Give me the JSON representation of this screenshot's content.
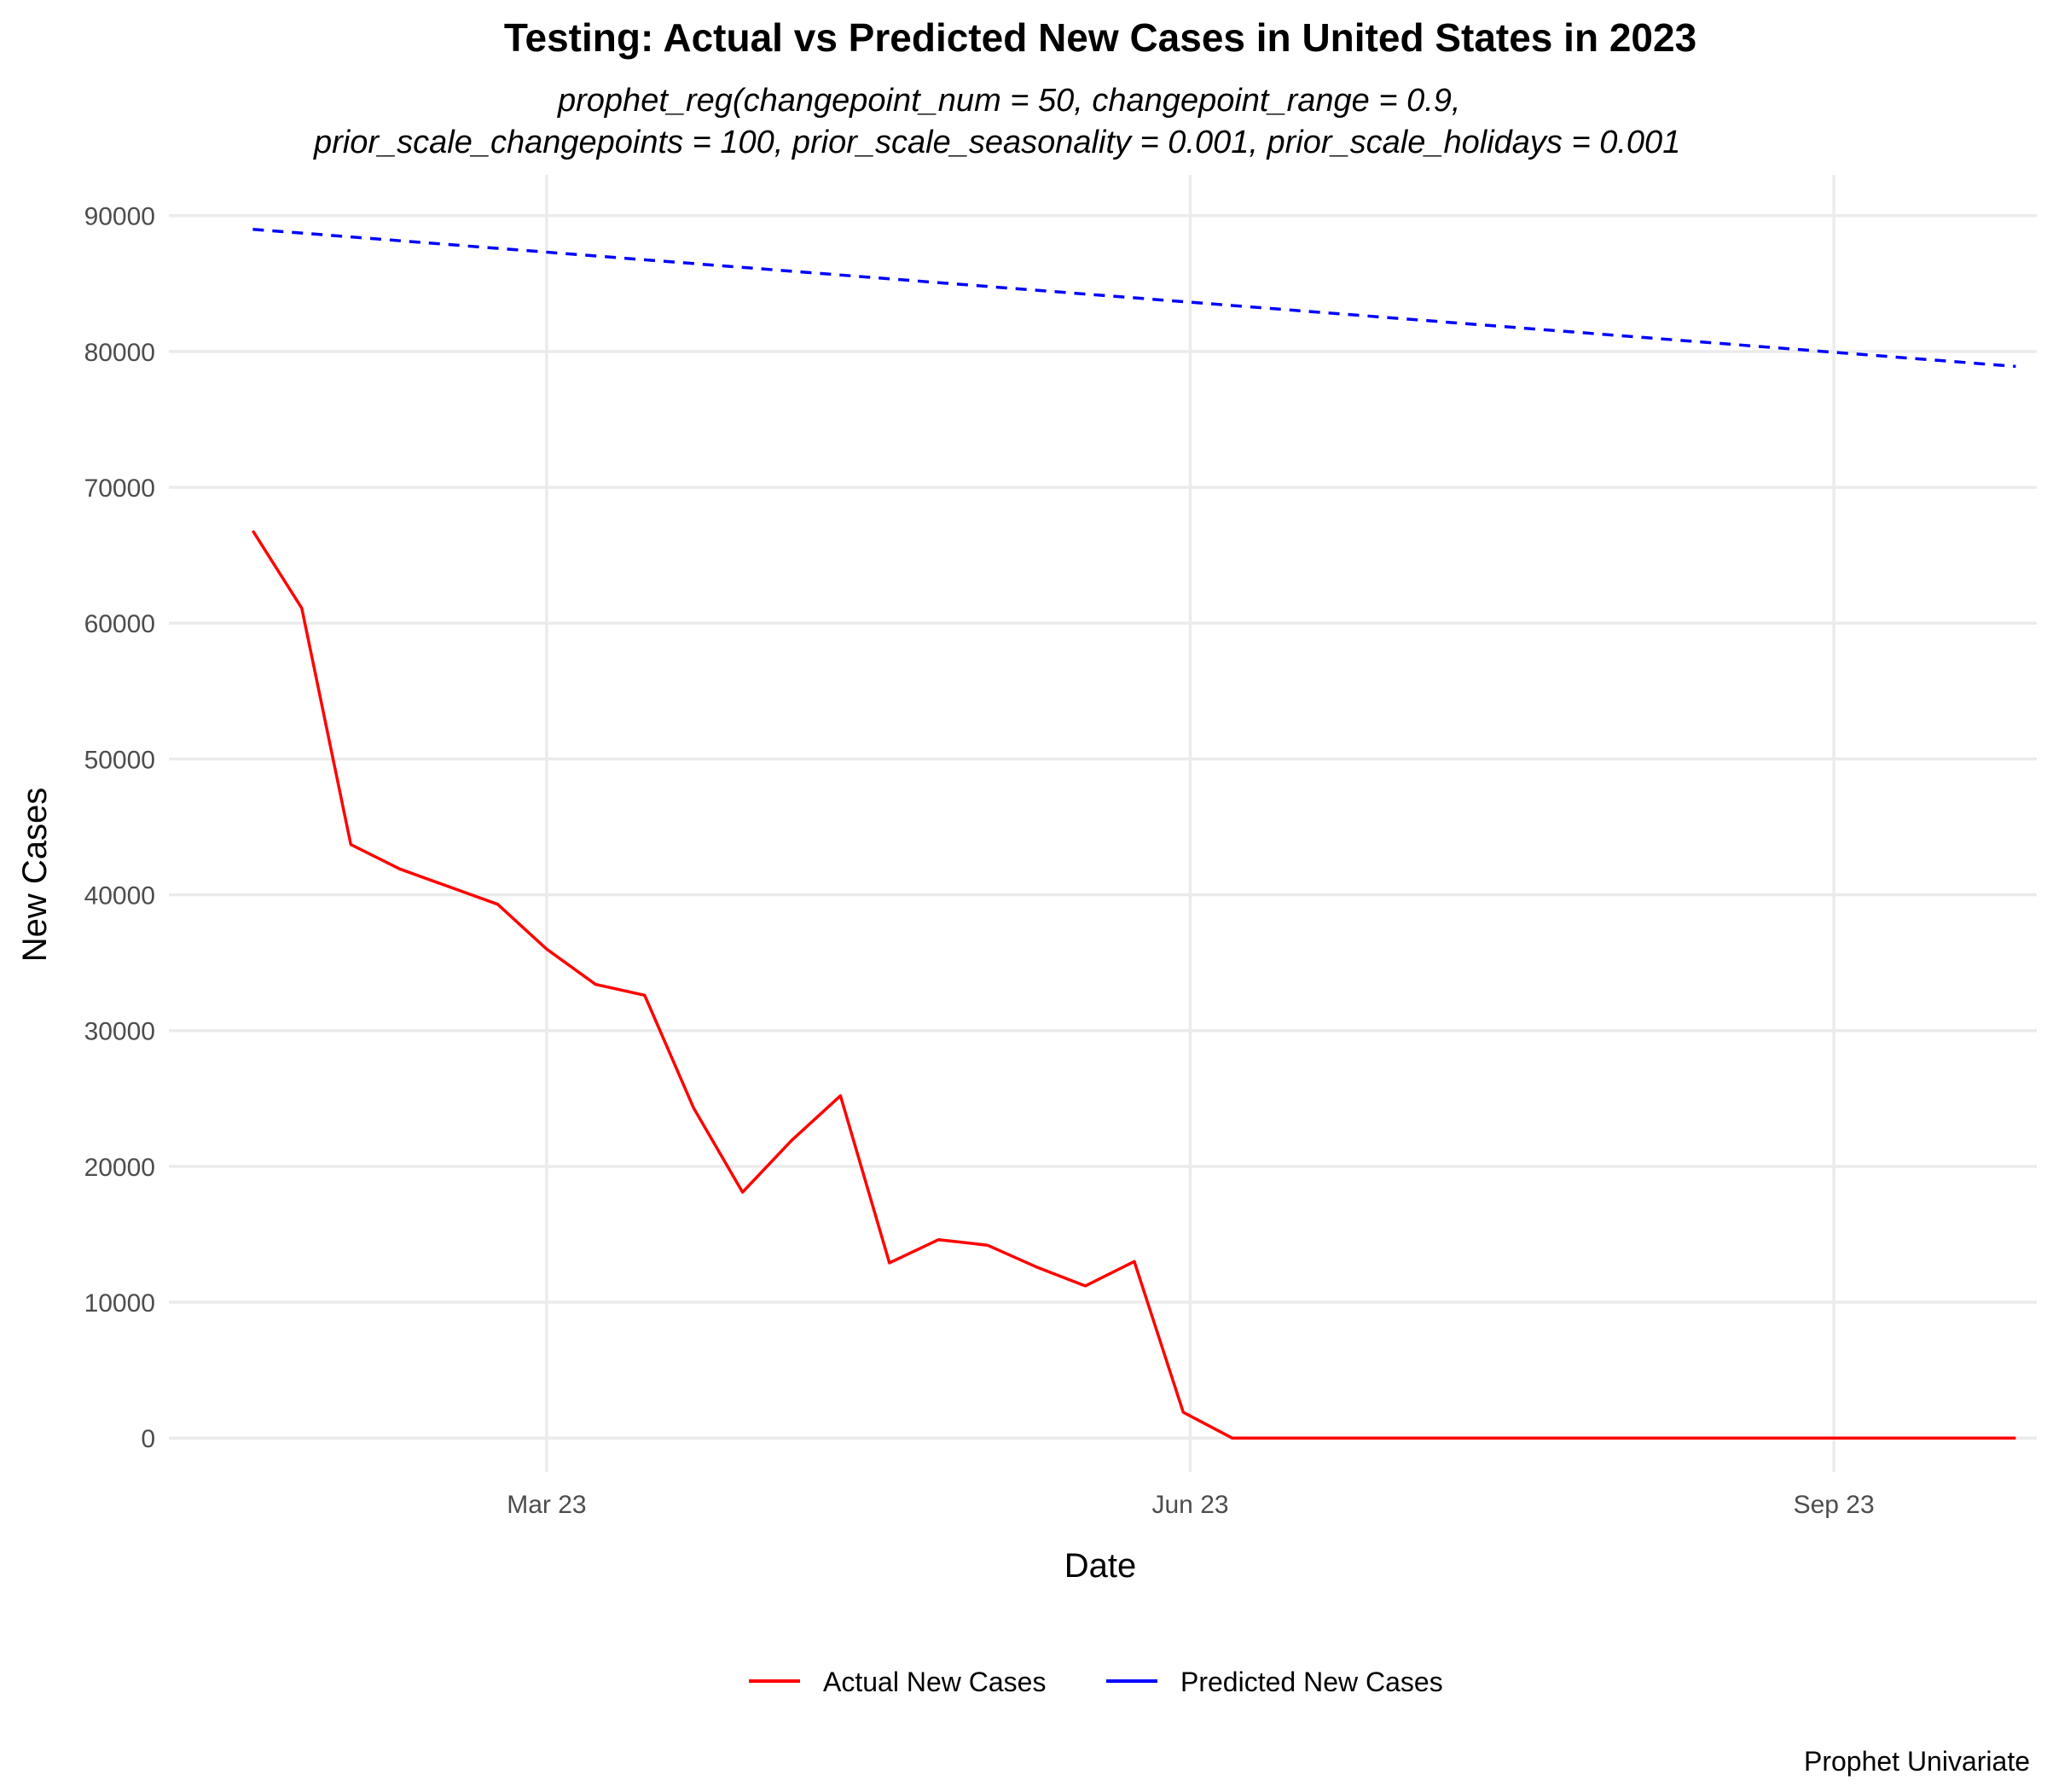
{
  "chart_data": {
    "type": "line",
    "title": "Testing: Actual vs Predicted New Cases in United States in 2023",
    "subtitle_lines": [
      "prophet_reg(changepoint_num = 50, changepoint_range = 0.9,",
      "prior_scale_changepoints = 100, prior_scale_seasonality = 0.001, prior_scale_holidays = 0.001"
    ],
    "xlabel": "Date",
    "ylabel": "New Cases",
    "caption": "Prophet Univariate",
    "x_tick_labels": [
      "Mar 23",
      "Jun 23",
      "Sep 23"
    ],
    "x_ticks": [
      "2023-03-01",
      "2023-06-01",
      "2023-09-01"
    ],
    "xlim": [
      "2023-01-06",
      "2023-09-30"
    ],
    "y_ticks": [
      0,
      10000,
      20000,
      30000,
      40000,
      50000,
      60000,
      70000,
      80000,
      90000
    ],
    "ylim": [
      -2500,
      93000
    ],
    "legend_position": "bottom",
    "series": [
      {
        "name": "Actual New Cases",
        "color": "#FF0000",
        "dash": "solid",
        "x": [
          "2023-01-18",
          "2023-01-25",
          "2023-02-01",
          "2023-02-08",
          "2023-02-15",
          "2023-02-22",
          "2023-03-01",
          "2023-03-08",
          "2023-03-15",
          "2023-03-22",
          "2023-03-29",
          "2023-04-05",
          "2023-04-12",
          "2023-04-19",
          "2023-04-26",
          "2023-05-03",
          "2023-05-10",
          "2023-05-17",
          "2023-05-24",
          "2023-05-31",
          "2023-06-07",
          "2023-06-14",
          "2023-06-21",
          "2023-06-28",
          "2023-07-05",
          "2023-07-12",
          "2023-07-19",
          "2023-07-26",
          "2023-08-02",
          "2023-08-09",
          "2023-08-16",
          "2023-08-23",
          "2023-08-30",
          "2023-09-06",
          "2023-09-13",
          "2023-09-20",
          "2023-09-27"
        ],
        "values": [
          66800,
          61100,
          43700,
          41900,
          40600,
          39300,
          36000,
          33400,
          32600,
          24300,
          18100,
          21900,
          25200,
          12900,
          14600,
          14200,
          12600,
          11200,
          13000,
          1900,
          0,
          0,
          0,
          0,
          0,
          0,
          0,
          0,
          0,
          0,
          0,
          0,
          0,
          0,
          0,
          0,
          0
        ]
      },
      {
        "name": "Predicted New Cases",
        "color": "#0000FF",
        "dash": "dashed",
        "x": [
          "2023-01-18",
          "2023-09-27"
        ],
        "values": [
          89000,
          78900
        ]
      }
    ]
  }
}
